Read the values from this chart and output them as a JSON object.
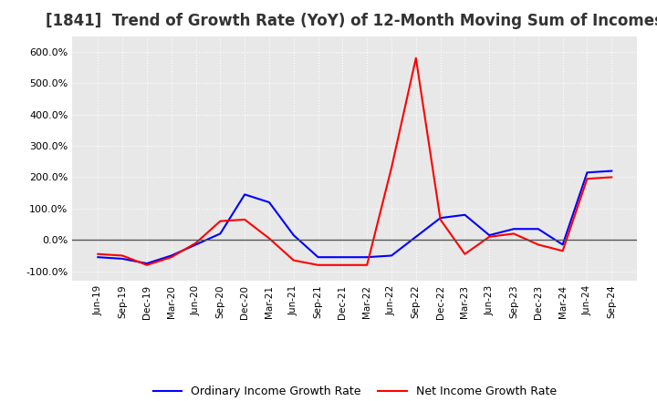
{
  "title": "[1841]  Trend of Growth Rate (YoY) of 12-Month Moving Sum of Incomes",
  "title_fontsize": 12,
  "ylim": [
    -130,
    650
  ],
  "yticks": [
    -100,
    0,
    100,
    200,
    300,
    400,
    500,
    600
  ],
  "background_color": "#ffffff",
  "plot_bg_color": "#e8e8e8",
  "grid_color": "#ffffff",
  "legend_labels": [
    "Ordinary Income Growth Rate",
    "Net Income Growth Rate"
  ],
  "line_colors": [
    "#0000ff",
    "#ff0000"
  ],
  "x_labels": [
    "Jun-19",
    "Sep-19",
    "Dec-19",
    "Mar-20",
    "Jun-20",
    "Sep-20",
    "Dec-20",
    "Mar-21",
    "Jun-21",
    "Sep-21",
    "Dec-21",
    "Mar-22",
    "Jun-22",
    "Sep-22",
    "Dec-22",
    "Mar-23",
    "Jun-23",
    "Sep-23",
    "Dec-23",
    "Mar-24",
    "Jun-24",
    "Sep-24"
  ],
  "ordinary_income": [
    -55,
    -60,
    -75,
    -50,
    -15,
    20,
    145,
    120,
    15,
    -55,
    -55,
    -55,
    -50,
    10,
    70,
    80,
    15,
    35,
    35,
    -15,
    215,
    220
  ],
  "net_income": [
    -45,
    -50,
    -80,
    -55,
    -10,
    60,
    65,
    5,
    -65,
    -80,
    -80,
    -80,
    230,
    580,
    65,
    -45,
    10,
    20,
    -15,
    -35,
    195,
    200
  ]
}
